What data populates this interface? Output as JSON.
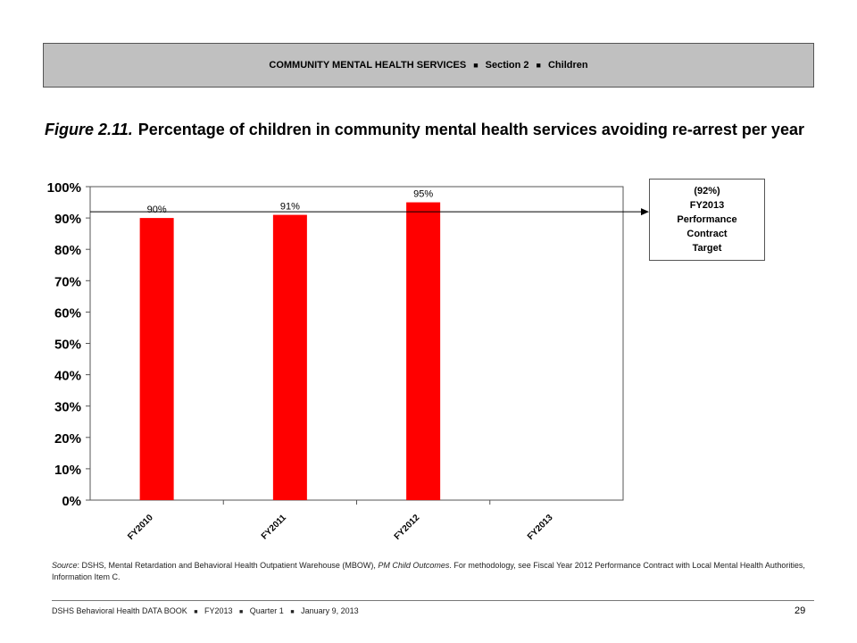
{
  "header": {
    "section_main": "COMMUNITY MENTAL HEALTH SERVICES",
    "section_num": "Section 2",
    "section_sub": "Children",
    "separator": "■"
  },
  "figure": {
    "number": "Figure 2.11.",
    "title": "Percentage of children in community mental health services avoiding re-arrest per year"
  },
  "chart_data": {
    "type": "bar",
    "categories": [
      "FY2010",
      "FY2011",
      "FY2012",
      "FY2013"
    ],
    "values": [
      90,
      91,
      95,
      null
    ],
    "value_labels": [
      "90%",
      "91%",
      "95%",
      ""
    ],
    "y_ticks": [
      "0%",
      "10%",
      "20%",
      "30%",
      "40%",
      "50%",
      "60%",
      "70%",
      "80%",
      "90%",
      "100%"
    ],
    "ylim": [
      0,
      100
    ],
    "bar_color": "#ff0000",
    "target_line": {
      "value": 92
    },
    "grid": false
  },
  "target_box": {
    "line1": "(92%)",
    "line2": "FY2013",
    "line3": "Performance",
    "line4": "Contract",
    "line5": "Target"
  },
  "source": {
    "label": "Source",
    "text1": ": DSHS, Mental Retardation and Behavioral Health Outpatient Warehouse (MBOW), ",
    "italic": "PM Child Outcomes",
    "text2": ". For methodology, see Fiscal Year 2012 Performance Contract with Local Mental Health Authorities, Information Item C."
  },
  "footer": {
    "book": "DSHS Behavioral Health DATA BOOK",
    "fy": "FY2013",
    "quarter": "Quarter 1",
    "date": "January 9, 2013",
    "separator": "■",
    "page": "29"
  }
}
